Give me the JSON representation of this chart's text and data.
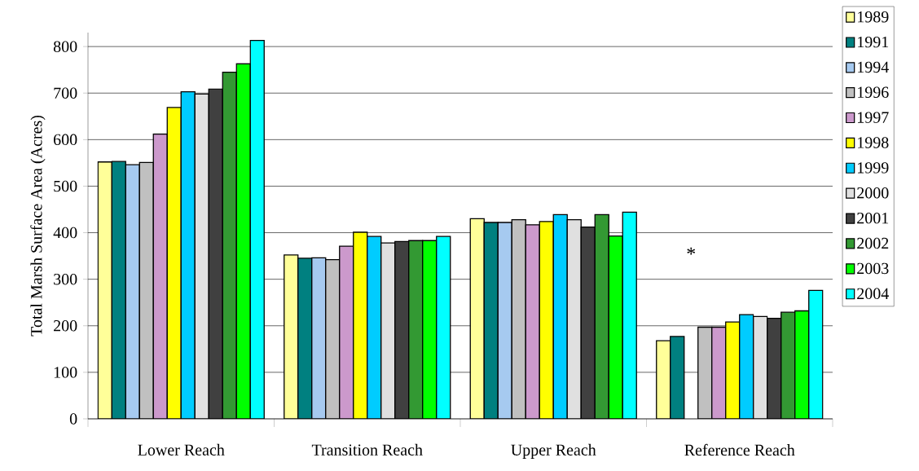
{
  "chart_data": {
    "type": "bar",
    "ylabel": "Total Marsh Surface Area (Acres)",
    "categories": [
      "Lower Reach",
      "Transition Reach",
      "Upper Reach",
      "Reference Reach"
    ],
    "series": [
      {
        "name": "1989",
        "color": "#ffff99",
        "values": [
          552,
          352,
          430,
          168
        ]
      },
      {
        "name": "1991",
        "color": "#008080",
        "values": [
          553,
          345,
          422,
          177
        ]
      },
      {
        "name": "1994",
        "color": "#a6caf0",
        "values": [
          546,
          346,
          422,
          null
        ]
      },
      {
        "name": "1996",
        "color": "#c0c0c0",
        "values": [
          551,
          342,
          428,
          197
        ]
      },
      {
        "name": "1997",
        "color": "#cc99cc",
        "values": [
          612,
          371,
          417,
          197
        ]
      },
      {
        "name": "1998",
        "color": "#ffff00",
        "values": [
          669,
          401,
          424,
          208
        ]
      },
      {
        "name": "1999",
        "color": "#00ccff",
        "values": [
          703,
          392,
          439,
          224
        ]
      },
      {
        "name": "2000",
        "color": "#e0e0e0",
        "values": [
          698,
          378,
          428,
          220
        ]
      },
      {
        "name": "2001",
        "color": "#404040",
        "values": [
          709,
          381,
          412,
          216
        ]
      },
      {
        "name": "2002",
        "color": "#339933",
        "values": [
          745,
          383,
          439,
          229
        ]
      },
      {
        "name": "2003",
        "color": "#00ff00",
        "values": [
          763,
          383,
          393,
          232
        ]
      },
      {
        "name": "2004",
        "color": "#00ffff",
        "values": [
          813,
          392,
          444,
          276
        ]
      }
    ],
    "ylim": [
      0,
      830
    ],
    "yticks": [
      0,
      100,
      200,
      300,
      400,
      500,
      600,
      700,
      800
    ],
    "grid": "y",
    "legend": "right",
    "annotations": [
      "*"
    ]
  }
}
